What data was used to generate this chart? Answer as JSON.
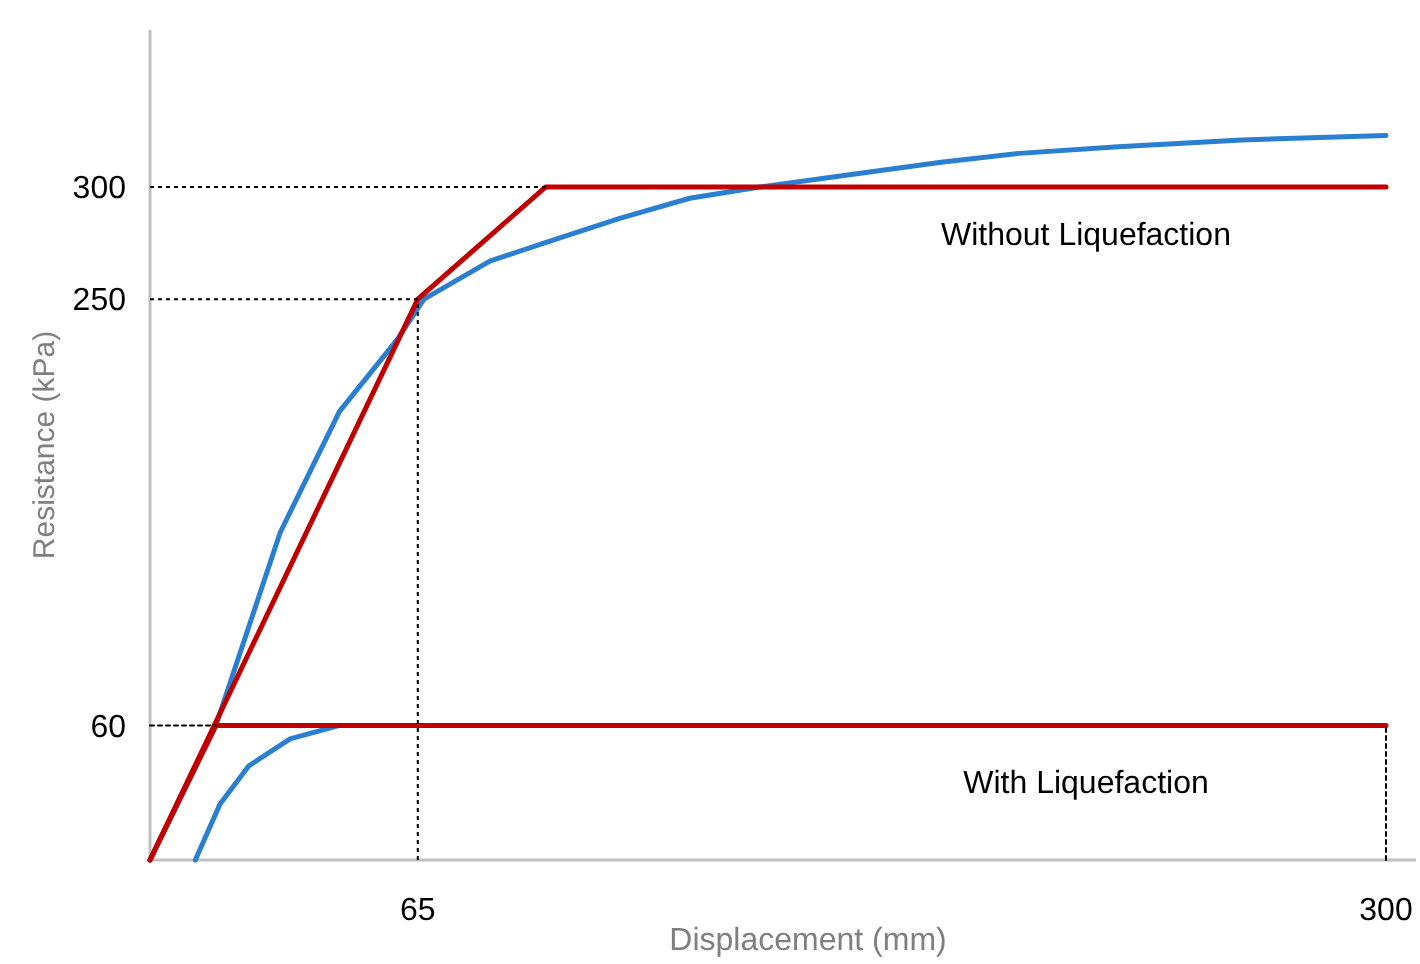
{
  "chart_data": {
    "type": "line",
    "xlabel": "Displacement (mm)",
    "ylabel": "Resistance (kPa)",
    "xlim": [
      0,
      300
    ],
    "ylim": [
      0,
      370
    ],
    "xticks": [
      65,
      300
    ],
    "yticks": [
      60,
      250,
      300
    ],
    "grid": false,
    "marker": "none",
    "line_style": "solid",
    "series": [
      {
        "color": "#2a7fd0",
        "x": [
          11,
          17,
          24,
          34,
          46
        ],
        "values": [
          0,
          25,
          42,
          54,
          60
        ]
      },
      {
        "color": "#2a7fd0",
        "x": [
          0,
          16,
          31.6,
          46,
          60,
          66.5,
          82.5,
          95.6,
          114,
          131,
          148,
          172,
          192,
          211,
          235,
          265,
          300
        ],
        "values": [
          0,
          60,
          146,
          200,
          232,
          250,
          267,
          275,
          286,
          295,
          300,
          306,
          311,
          315,
          318,
          321,
          323
        ]
      },
      {
        "color": "#c00000",
        "x": [
          0,
          65,
          96,
          300
        ],
        "values": [
          0,
          250,
          300,
          300
        ]
      },
      {
        "color": "#c00000",
        "x": [
          0,
          16,
          300
        ],
        "values": [
          0,
          60,
          60
        ]
      },
      {
        "color": "#000000",
        "line_style": "dotted",
        "x": [
          0,
          16
        ],
        "values": [
          60,
          60
        ]
      },
      {
        "color": "#000000",
        "line_style": "dotted",
        "x": [
          300,
          300
        ],
        "values": [
          0,
          60
        ]
      }
    ],
    "ref_lines": [
      {
        "axis": "y",
        "value": 250,
        "color": "#000000",
        "line_style": "dotted"
      },
      {
        "axis": "y",
        "value": 300,
        "color": "#000000",
        "line_style": "dotted"
      },
      {
        "axis": "x",
        "value": 65,
        "color": "#000000",
        "line_style": "dotted"
      }
    ],
    "annotations": [
      "Without Liquefaction",
      "With Liquefaction"
    ]
  }
}
